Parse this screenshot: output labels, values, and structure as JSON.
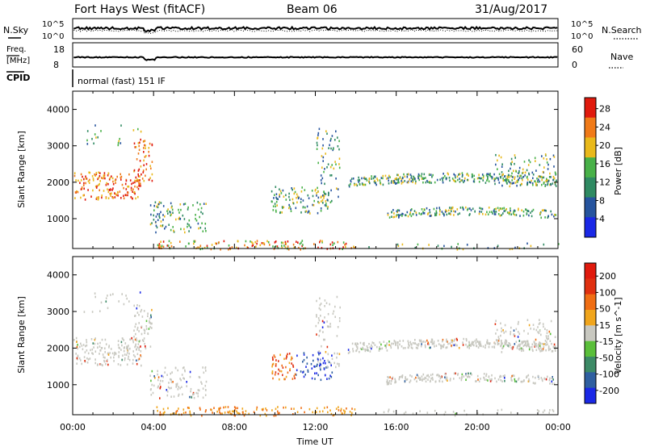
{
  "header": {
    "station": "Fort Hays West (fitACF)",
    "beam": "Beam 06",
    "date": "31/Aug/2017"
  },
  "panels": {
    "nsky": {
      "label": "N.Sky",
      "right_label": "N.Search",
      "left_ticks": [
        "10^5",
        "10^0"
      ],
      "right_ticks": [
        "10^5",
        "10^0"
      ]
    },
    "freq": {
      "label_line1": "Freq.",
      "label_line2": "[MHz]",
      "right_label": "Nave",
      "left_ticks": [
        "18",
        "8"
      ],
      "right_ticks": [
        "60",
        "0"
      ]
    },
    "cpid": {
      "label": "CPID",
      "text": "normal (fast) 151 IF"
    }
  },
  "chart_data": [
    {
      "type": "heatmap",
      "title": "",
      "parameter": "Power",
      "xlabel": "Time UT",
      "ylabel": "Slant Range [km]",
      "xlim_hours": [
        0,
        24
      ],
      "ylim_km": [
        180,
        4500
      ],
      "x_ticks": [
        "00:00",
        "04:00",
        "08:00",
        "12:00",
        "16:00",
        "20:00",
        "00:00"
      ],
      "y_ticks": [
        "1000",
        "2000",
        "3000",
        "4000"
      ],
      "colorbar": {
        "label": "Power [dB]",
        "ticks": [
          "4",
          "8",
          "12",
          "16",
          "20",
          "24",
          "28"
        ],
        "range": [
          0,
          30
        ],
        "colors": [
          "#1a28e6",
          "#26549e",
          "#2f8a62",
          "#48b148",
          "#e9b91b",
          "#f07a18",
          "#e01a0d"
        ]
      }
    },
    {
      "type": "heatmap",
      "title": "",
      "parameter": "Velocity",
      "xlabel": "Time UT",
      "ylabel": "Slant Range [km]",
      "xlim_hours": [
        0,
        24
      ],
      "ylim_km": [
        180,
        4500
      ],
      "x_ticks": [
        "00:00",
        "04:00",
        "08:00",
        "12:00",
        "16:00",
        "20:00",
        "00:00"
      ],
      "y_ticks": [
        "1000",
        "2000",
        "3000",
        "4000"
      ],
      "colorbar": {
        "label": "Velocity [m s^-1]",
        "ticks": [
          "200",
          "100",
          "50",
          "15",
          "-15",
          "-50",
          "-100",
          "-200"
        ],
        "range": [
          -250,
          250
        ],
        "colors": [
          "#1a28e6",
          "#2f5fa0",
          "#3c8a66",
          "#5abf3a",
          "#c8c8c0",
          "#f0a51c",
          "#f06e14",
          "#e03010",
          "#e01a0d"
        ]
      }
    }
  ],
  "axis_title": "Time UT"
}
